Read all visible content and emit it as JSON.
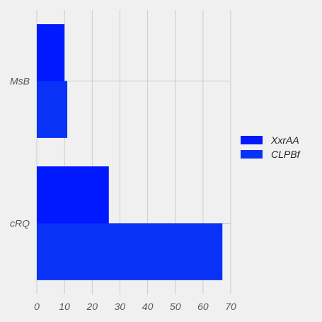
{
  "chart_data": {
    "type": "bar",
    "orientation": "horizontal",
    "categories": [
      "MsB",
      "cRQ"
    ],
    "series": [
      {
        "name": "XxrAA",
        "values": [
          10,
          26
        ],
        "color": "#0019ff"
      },
      {
        "name": "CLPBf",
        "values": [
          11,
          67
        ],
        "color": "#0832f5"
      }
    ],
    "xlim": [
      0,
      70
    ],
    "xticks": [
      "0",
      "10",
      "20",
      "30",
      "40",
      "50",
      "60",
      "70"
    ],
    "grid": true,
    "legend_position": "right",
    "title": "",
    "xlabel": "",
    "ylabel": ""
  }
}
